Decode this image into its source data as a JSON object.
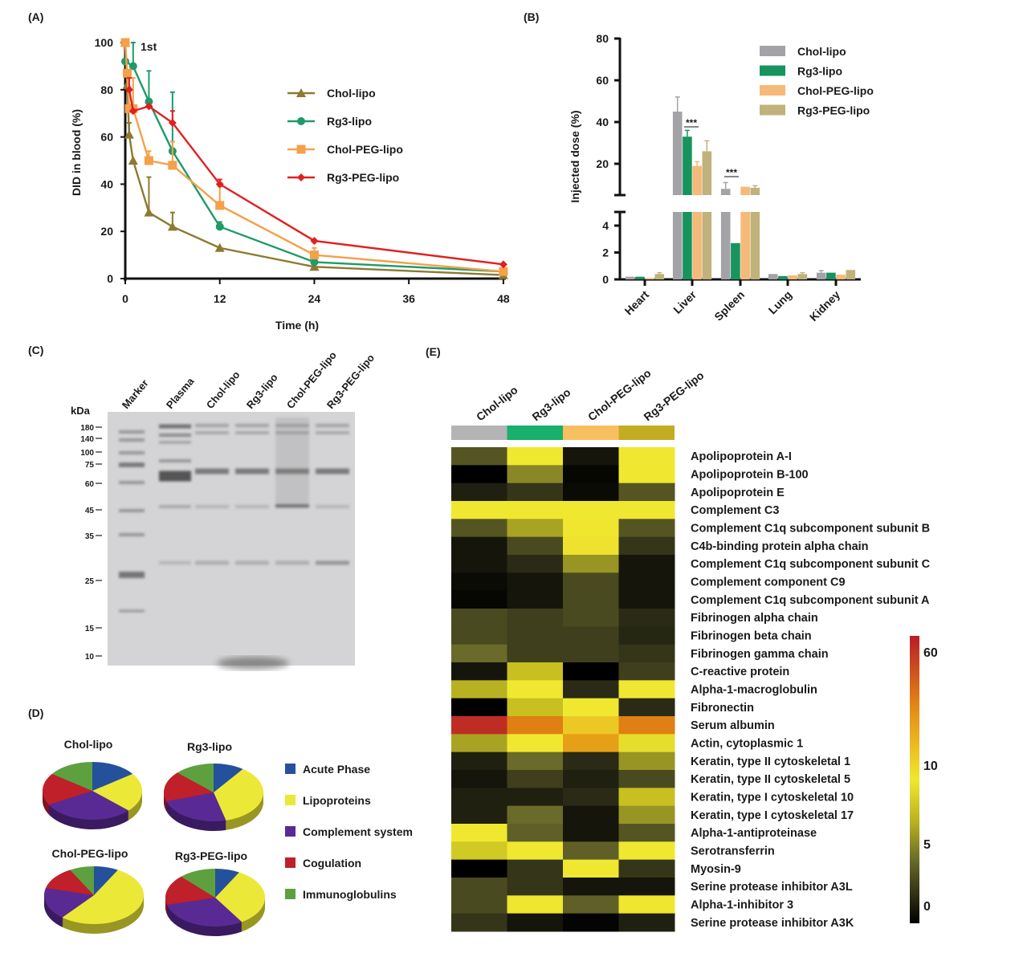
{
  "panels": {
    "A": "(A)",
    "B": "(B)",
    "C": "(C)",
    "D": "(D)",
    "E": "(E)"
  },
  "chart_data": [
    {
      "panel": "A",
      "type": "line",
      "xlabel": "Time (h)",
      "ylabel": "DID in blood (%)",
      "annotation": "1st",
      "xlim": [
        0,
        48
      ],
      "ylim": [
        0,
        100
      ],
      "xticks": [
        "0",
        "12",
        "24",
        "36",
        "48"
      ],
      "yticks": [
        "0",
        "20",
        "40",
        "60",
        "80",
        "100"
      ],
      "legend": "center-right",
      "series": [
        {
          "name": "Chol-lipo",
          "color": "#8c7a30",
          "marker": "triangle",
          "x": [
            0,
            0.25,
            0.5,
            1,
            3,
            6,
            12,
            24,
            48
          ],
          "y": [
            100,
            82,
            61,
            50,
            28,
            22,
            13,
            5,
            1.5
          ],
          "err": [
            0,
            0,
            5,
            0,
            15,
            6,
            0,
            0,
            0
          ]
        },
        {
          "name": "Rg3-lipo",
          "color": "#1f9a6a",
          "marker": "circle",
          "x": [
            0,
            1,
            3,
            6,
            12,
            24,
            48
          ],
          "y": [
            92,
            90,
            75,
            54,
            22,
            7,
            3
          ],
          "err": [
            0,
            10,
            13,
            25,
            2,
            0,
            0
          ]
        },
        {
          "name": "Chol-PEG-lipo",
          "color": "#f5a04a",
          "marker": "square",
          "x": [
            0,
            0.25,
            0.5,
            1,
            3,
            6,
            12,
            24,
            48
          ],
          "y": [
            100,
            87,
            72,
            72,
            50,
            48,
            31,
            10,
            3
          ],
          "err": [
            0,
            0,
            0,
            13,
            4,
            10,
            8,
            3,
            0
          ]
        },
        {
          "name": "Rg3-PEG-lipo",
          "color": "#e02020",
          "marker": "diamond",
          "x": [
            0.5,
            1,
            3,
            6,
            12,
            24,
            48
          ],
          "y": [
            80,
            71,
            73,
            66,
            40,
            16,
            6
          ],
          "err": [
            5,
            0,
            0,
            5,
            2,
            0,
            0
          ]
        }
      ]
    },
    {
      "panel": "B",
      "type": "bar",
      "ylabel": "Injected dose  (%)",
      "categories": [
        "Heart",
        "Liver",
        "Spleen",
        "Lung",
        "Kidney"
      ],
      "ylim": [
        0,
        80
      ],
      "axis_break": [
        5,
        5.4
      ],
      "yticks_upper": [
        "20",
        "40",
        "60",
        "80"
      ],
      "yticks_lower": [
        "0",
        "2",
        "4"
      ],
      "legend": "top-right",
      "significance": [
        {
          "category": "Liver",
          "label": "***"
        },
        {
          "category": "Spleen",
          "label": "***"
        }
      ],
      "series": [
        {
          "name": "Chol-lipo",
          "color": "#a3a3a7",
          "values": [
            0.2,
            45,
            8,
            0.4,
            0.5
          ],
          "err": [
            0,
            7,
            3,
            0,
            0.15
          ]
        },
        {
          "name": "Rg3-lipo",
          "color": "#17935e",
          "values": [
            0.2,
            33,
            2.7,
            0.25,
            0.5
          ],
          "err": [
            0,
            3,
            0,
            0,
            0
          ]
        },
        {
          "name": "Chol-PEG-lipo",
          "color": "#f5b97a",
          "values": [
            0.1,
            19,
            9,
            0.3,
            0.35
          ],
          "err": [
            0,
            2,
            0,
            0,
            0
          ]
        },
        {
          "name": "Rg3-PEG-lipo",
          "color": "#bfb27a",
          "values": [
            0.4,
            26,
            8.5,
            0.4,
            0.7
          ],
          "err": [
            0.1,
            5,
            1,
            0.1,
            0
          ]
        }
      ]
    },
    {
      "panel": "D",
      "type": "pie",
      "legend": "right",
      "categories": [
        "Acute Phase",
        "Lipoproteins",
        "Complement system",
        "Cogulation",
        "Immunoglobulins"
      ],
      "colors": [
        "#24519c",
        "#ece838",
        "#5a2a94",
        "#c0202a",
        "#5ea040"
      ],
      "pies": [
        {
          "name": "Chol-lipo",
          "values": [
            15,
            22,
            30,
            18,
            15
          ]
        },
        {
          "name": "Rg3-lipo",
          "values": [
            10,
            36,
            24,
            17,
            13
          ]
        },
        {
          "name": "Chol-PEG-lipo",
          "values": [
            8,
            53,
            18,
            13,
            8
          ]
        },
        {
          "name": "Rg3-PEG-lipo",
          "values": [
            8,
            33,
            30,
            17,
            12
          ]
        }
      ]
    },
    {
      "panel": "E",
      "type": "heatmap",
      "columns": [
        "Chol-lipo",
        "Rg3-lipo",
        "Chol-PEG-lipo",
        "Rg3-PEG-lipo"
      ],
      "column_colors": [
        "#b4b4b4",
        "#17b06c",
        "#f8bf60",
        "#c4ac22"
      ],
      "colorbar_ticks": [
        "0",
        "5",
        "10",
        "60"
      ],
      "rows": [
        {
          "name": "Apolipoprotein A-I",
          "values": [
            4,
            10,
            1,
            10
          ]
        },
        {
          "name": "Apolipoprotein B-100",
          "values": [
            0,
            6,
            0.3,
            10
          ]
        },
        {
          "name": "Apolipoprotein E",
          "values": [
            1.5,
            2.5,
            0.5,
            4
          ]
        },
        {
          "name": "Complement C3",
          "values": [
            10,
            10,
            10,
            10
          ]
        },
        {
          "name": "Complement C1q subcomponent subunit B",
          "values": [
            4,
            7,
            10.5,
            4
          ]
        },
        {
          "name": "C4b-binding protein alpha chain",
          "values": [
            1,
            3.5,
            11,
            2.5
          ]
        },
        {
          "name": "Complement C1q subcomponent subunit C",
          "values": [
            1,
            2,
            6.5,
            1
          ]
        },
        {
          "name": "Complement component C9",
          "values": [
            0.5,
            1,
            3.5,
            1
          ]
        },
        {
          "name": "Complement C1q subcomponent subunit A",
          "values": [
            0.3,
            1,
            3.5,
            1
          ]
        },
        {
          "name": "Fibrinogen alpha chain",
          "values": [
            3.5,
            3,
            3.5,
            2
          ]
        },
        {
          "name": "Fibrinogen beta chain",
          "values": [
            3.5,
            3,
            3,
            1.8
          ]
        },
        {
          "name": "Fibrinogen gamma chain",
          "values": [
            5,
            3,
            3,
            2.5
          ]
        },
        {
          "name": "C-reactive protein",
          "values": [
            1,
            8,
            0,
            3
          ]
        },
        {
          "name": "Alpha-1-macroglobulin",
          "values": [
            7.5,
            10,
            2,
            10
          ]
        },
        {
          "name": "Fibronectin",
          "values": [
            0,
            8,
            10,
            2
          ]
        },
        {
          "name": "Serum albumin",
          "values": [
            55,
            30,
            15,
            30
          ]
        },
        {
          "name": "Actin, cytoplasmic 1",
          "values": [
            7,
            10,
            22,
            9.5
          ]
        },
        {
          "name": "Keratin, type II cytoskeletal 1",
          "values": [
            1.5,
            5,
            2,
            6.5
          ]
        },
        {
          "name": "Keratin, type II cytoskeletal 5",
          "values": [
            1,
            3,
            1.5,
            3.5
          ]
        },
        {
          "name": "Keratin, type I cytoskeletal 10",
          "values": [
            1.5,
            1.5,
            2,
            8
          ]
        },
        {
          "name": "Keratin, type I cytoskeletal 17",
          "values": [
            1.5,
            5,
            1,
            6.5
          ]
        },
        {
          "name": "Alpha-1-antiproteinase",
          "values": [
            10,
            4.5,
            1,
            4
          ]
        },
        {
          "name": "Serotransferrin",
          "values": [
            8.5,
            10,
            4.5,
            10
          ]
        },
        {
          "name": "Myosin-9",
          "values": [
            0,
            2.5,
            10,
            2.5
          ]
        },
        {
          "name": "Serine protease inhibitor A3L",
          "values": [
            3.5,
            2.5,
            1,
            1
          ]
        },
        {
          "name": "Alpha-1-inhibitor 3",
          "values": [
            3.5,
            10.5,
            4.5,
            10.5
          ]
        },
        {
          "name": "Serine protease inhibitor A3K",
          "values": [
            2.5,
            1,
            0.2,
            1.5
          ]
        }
      ]
    }
  ],
  "gel": {
    "unit": "kDa",
    "lanes": [
      "Marker",
      "Plasma",
      "Chol-lipo",
      "Rg3-lipo",
      "Chol-PEG-lipo",
      "Rg3-PEG-lipo"
    ],
    "markers": [
      "180",
      "140",
      "100",
      "75",
      "60",
      "45",
      "35",
      "25",
      "15",
      "10"
    ]
  }
}
